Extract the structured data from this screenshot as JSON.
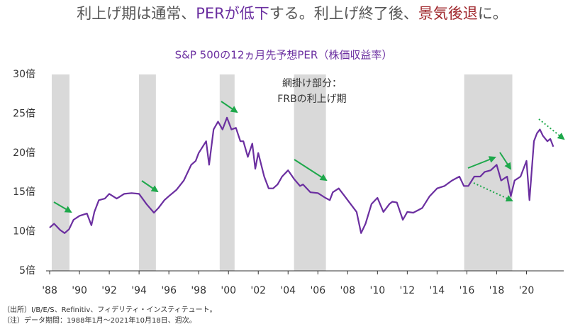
{
  "chart_data": {
    "type": "line",
    "title": [
      {
        "text": "利上げ期は通常、",
        "color": "#555555"
      },
      {
        "text": "PERが低下",
        "color": "#6b2fa0"
      },
      {
        "text": "する。利上げ終了後、",
        "color": "#555555"
      },
      {
        "text": "景気後退",
        "color": "#a0282d"
      },
      {
        "text": "に。",
        "color": "#555555"
      }
    ],
    "subtitle": "S&P 500の12ヵ月先予想PER（株価収益率）",
    "annotation": [
      "網掛け部分：",
      "FRBの利上げ期"
    ],
    "notes": [
      "（出所）I/B/E/S、Refinitiv、フィデリティ・インスティテュート。",
      "（注）データ期間：1988年1月〜2021年10月18日、週次。"
    ],
    "xlim": [
      1987.76,
      2022.5
    ],
    "ylim": [
      5,
      30
    ],
    "xticks": [
      {
        "value": 1988,
        "label": "'88"
      },
      {
        "value": 1990,
        "label": "'90"
      },
      {
        "value": 1992,
        "label": "'92"
      },
      {
        "value": 1994,
        "label": "'94"
      },
      {
        "value": 1996,
        "label": "'96"
      },
      {
        "value": 1998,
        "label": "'98"
      },
      {
        "value": 2000,
        "label": "'00"
      },
      {
        "value": 2002,
        "label": "'02"
      },
      {
        "value": 2004,
        "label": "'04"
      },
      {
        "value": 2006,
        "label": "'06"
      },
      {
        "value": 2008,
        "label": "'08"
      },
      {
        "value": 2010,
        "label": "'10"
      },
      {
        "value": 2012,
        "label": "'12"
      },
      {
        "value": 2014,
        "label": "'14"
      },
      {
        "value": 2016,
        "label": "'16"
      },
      {
        "value": 2018,
        "label": "'18"
      },
      {
        "value": 2020,
        "label": "'20"
      }
    ],
    "yticks": [
      {
        "value": 5,
        "label": "5倍"
      },
      {
        "value": 10,
        "label": "10倍"
      },
      {
        "value": 15,
        "label": "15倍"
      },
      {
        "value": 20,
        "label": "20倍"
      },
      {
        "value": 25,
        "label": "25倍"
      },
      {
        "value": 30,
        "label": "30倍"
      }
    ],
    "shaded_periods": [
      [
        1988.14,
        1989.33
      ],
      [
        1993.99,
        1995.13
      ],
      [
        1999.41,
        2000.41
      ],
      [
        2004.4,
        2006.54
      ],
      [
        2015.82,
        2019.05
      ]
    ],
    "shade_color": "#d9d9d9",
    "series": [
      {
        "color": "#6b2fa0",
        "x": [
          1988.0,
          1988.3,
          1988.7,
          1989.0,
          1989.3,
          1989.6,
          1990.0,
          1990.5,
          1990.8,
          1991.0,
          1991.3,
          1991.7,
          1992.0,
          1992.5,
          1993.0,
          1993.5,
          1994.0,
          1994.5,
          1995.0,
          1995.3,
          1995.7,
          1996.0,
          1996.5,
          1997.0,
          1997.5,
          1997.8,
          1998.0,
          1998.5,
          1998.7,
          1999.0,
          1999.3,
          1999.6,
          1999.9,
          2000.2,
          2000.5,
          2000.8,
          2001.0,
          2001.3,
          2001.6,
          2001.8,
          2002.0,
          2002.4,
          2002.7,
          2003.0,
          2003.3,
          2003.6,
          2004.0,
          2004.4,
          2004.8,
          2005.0,
          2005.5,
          2006.0,
          2006.5,
          2006.8,
          2007.0,
          2007.4,
          2007.8,
          2008.2,
          2008.6,
          2008.9,
          2009.2,
          2009.6,
          2010.0,
          2010.4,
          2010.8,
          2011.0,
          2011.3,
          2011.7,
          2012.0,
          2012.4,
          2012.8,
          2013.0,
          2013.5,
          2014.0,
          2014.5,
          2015.0,
          2015.5,
          2015.8,
          2016.1,
          2016.5,
          2016.9,
          2017.2,
          2017.6,
          2018.0,
          2018.3,
          2018.7,
          2018.95,
          2019.2,
          2019.6,
          2020.0,
          2020.2,
          2020.5,
          2020.7,
          2020.9,
          2021.1,
          2021.4,
          2021.6,
          2021.8
        ],
        "values": [
          10.5,
          11,
          10.2,
          9.8,
          10.3,
          11.5,
          12,
          12.3,
          10.8,
          12.5,
          14,
          14.2,
          14.8,
          14.2,
          14.8,
          14.9,
          14.8,
          13.5,
          12.4,
          13,
          14,
          14.5,
          15.3,
          16.5,
          18.5,
          19,
          20,
          21.5,
          18.5,
          23,
          24,
          23,
          24.5,
          23,
          23.2,
          21.5,
          21.5,
          19.5,
          21.2,
          18,
          20,
          17,
          15.5,
          15.5,
          16,
          17,
          17.8,
          16.7,
          15.8,
          16,
          15,
          14.9,
          14.3,
          14,
          15,
          15.5,
          14.5,
          13.5,
          12.5,
          9.8,
          11,
          13.5,
          14.3,
          12.5,
          13.5,
          13.8,
          13.7,
          11.5,
          12.5,
          12.4,
          12.8,
          13,
          14.5,
          15.5,
          15.8,
          16.5,
          17,
          15.8,
          15.8,
          17,
          17,
          17.6,
          17.8,
          18.5,
          16.5,
          17,
          14.5,
          16.5,
          17,
          19,
          14,
          21.5,
          22.5,
          23,
          22.2,
          21.5,
          21.8,
          20.8
        ]
      }
    ]
  }
}
